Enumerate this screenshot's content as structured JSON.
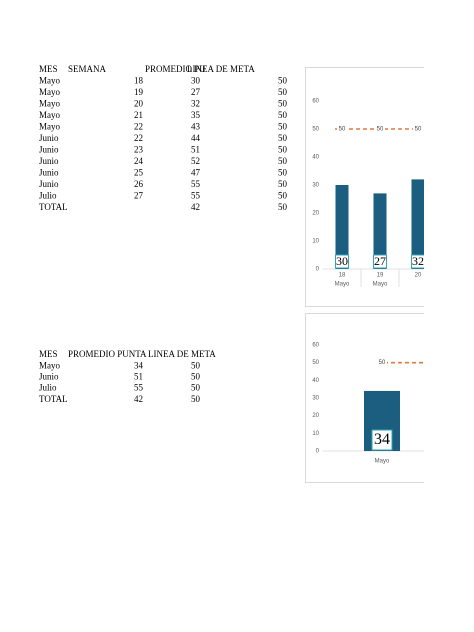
{
  "tables": [
    {
      "header": [
        "MES",
        "SEMANA",
        "PROMEDIO PU",
        "LINEA DE META"
      ],
      "rows": [
        [
          "Mayo",
          18,
          30,
          50
        ],
        [
          "Mayo",
          19,
          27,
          50
        ],
        [
          "Mayo",
          20,
          32,
          50
        ],
        [
          "Mayo",
          21,
          35,
          50
        ],
        [
          "Mayo",
          22,
          43,
          50
        ],
        [
          "Junio",
          22,
          44,
          50
        ],
        [
          "Junio",
          23,
          51,
          50
        ],
        [
          "Junio",
          24,
          52,
          50
        ],
        [
          "Junio",
          25,
          47,
          50
        ],
        [
          "Junio",
          26,
          55,
          50
        ],
        [
          "Julio",
          27,
          55,
          50
        ],
        [
          "TOTAL",
          null,
          42,
          50
        ]
      ]
    },
    {
      "header": [
        "MES",
        "PROMEDIO PUNTA",
        "LINEA DE META"
      ],
      "rows": [
        [
          "Mayo",
          34,
          50
        ],
        [
          "Junio",
          51,
          50
        ],
        [
          "Julio",
          55,
          50
        ],
        [
          "TOTAL",
          42,
          50
        ]
      ]
    }
  ],
  "chart_data": [
    {
      "type": "bar",
      "categories": [
        "18",
        "19",
        "20"
      ],
      "category_groups": [
        "Mayo",
        "Mayo",
        null
      ],
      "series": [
        {
          "type": "bar",
          "color": "#1b5e80",
          "values": [
            30,
            27,
            32
          ]
        },
        {
          "type": "line",
          "color": "#e2793b",
          "values": [
            50,
            50,
            50
          ]
        }
      ],
      "ylim": [
        0,
        60
      ],
      "yticks": [
        0,
        10,
        20,
        30,
        40,
        50,
        60
      ]
    },
    {
      "type": "bar",
      "categories": [
        "Mayo"
      ],
      "series": [
        {
          "type": "bar",
          "color": "#1b5e80",
          "values": [
            34
          ]
        },
        {
          "type": "line",
          "color": "#e2793b",
          "values": [
            50
          ]
        }
      ],
      "ylim": [
        0,
        60
      ],
      "yticks": [
        0,
        10,
        20,
        30,
        40,
        50,
        60
      ]
    }
  ]
}
